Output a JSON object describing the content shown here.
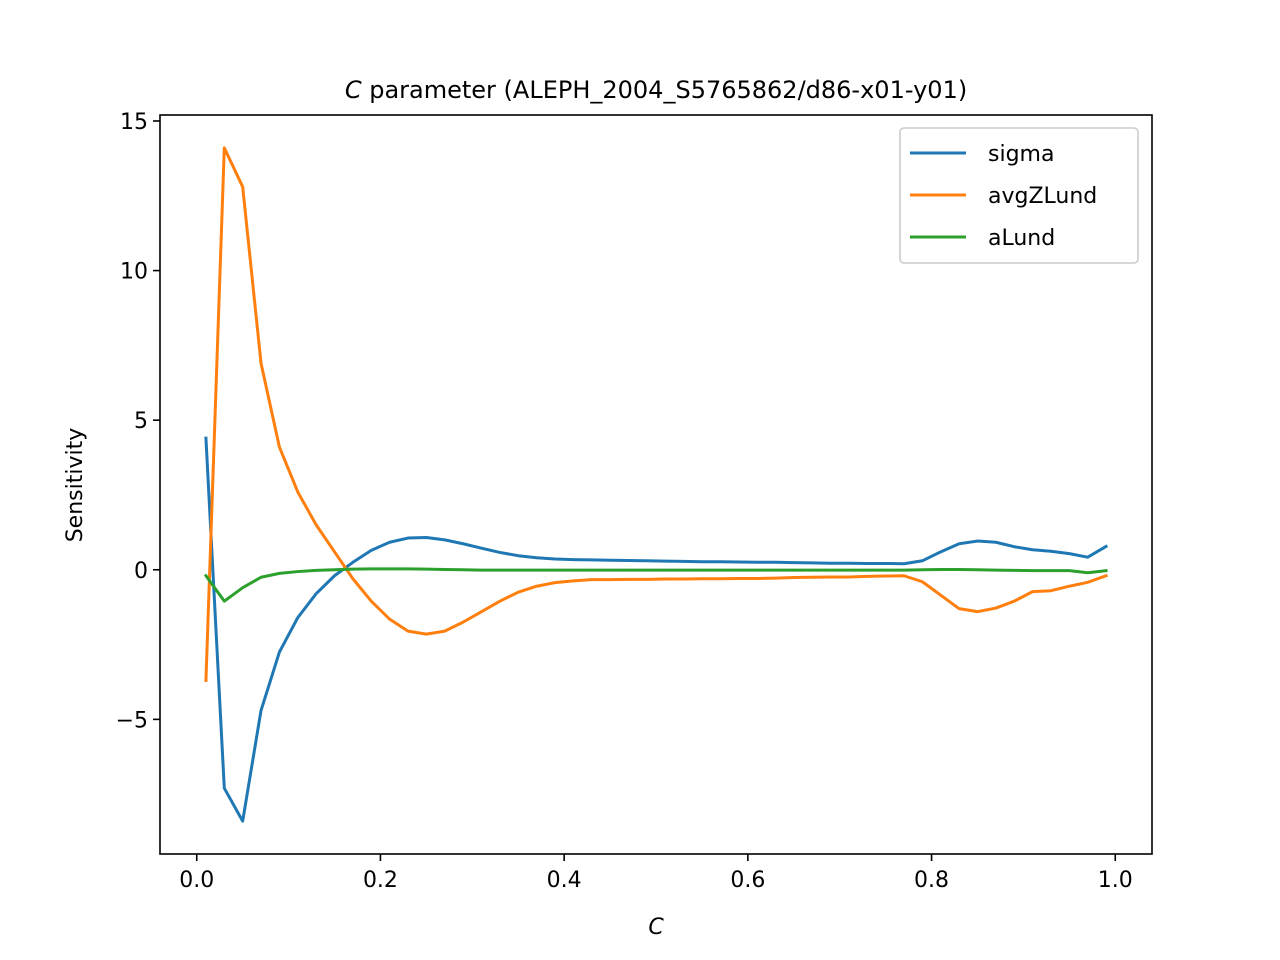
{
  "chart_data": {
    "type": "line",
    "title_var": "C",
    "title_rest": " parameter (ALEPH_2004_S5765862/d86-x01-y01)",
    "xlabel": "C",
    "ylabel": "Sensitivity",
    "xlim": [
      -0.04,
      1.04
    ],
    "ylim": [
      -9.5,
      15.2
    ],
    "xticks": [
      {
        "value": 0.0,
        "label": "0.0"
      },
      {
        "value": 0.2,
        "label": "0.2"
      },
      {
        "value": 0.4,
        "label": "0.4"
      },
      {
        "value": 0.6,
        "label": "0.6"
      },
      {
        "value": 0.8,
        "label": "0.8"
      },
      {
        "value": 1.0,
        "label": "1.0"
      }
    ],
    "yticks": [
      {
        "value": 15,
        "label": "15"
      },
      {
        "value": 10,
        "label": "10"
      },
      {
        "value": 5,
        "label": "5"
      },
      {
        "value": 0,
        "label": "0"
      },
      {
        "value": -5,
        "label": "−5"
      }
    ],
    "grid": false,
    "legend_position": "top-right",
    "x": [
      0.01,
      0.03,
      0.05,
      0.07,
      0.09,
      0.11,
      0.13,
      0.15,
      0.17,
      0.19,
      0.21,
      0.23,
      0.25,
      0.27,
      0.29,
      0.31,
      0.33,
      0.35,
      0.37,
      0.39,
      0.41,
      0.43,
      0.45,
      0.47,
      0.49,
      0.51,
      0.53,
      0.55,
      0.57,
      0.59,
      0.61,
      0.63,
      0.65,
      0.67,
      0.69,
      0.71,
      0.73,
      0.75,
      0.77,
      0.79,
      0.81,
      0.83,
      0.85,
      0.87,
      0.89,
      0.91,
      0.93,
      0.95,
      0.97,
      0.99
    ],
    "series": [
      {
        "name": "sigma",
        "color": "#1f77b4",
        "values": [
          4.4,
          -7.3,
          -8.4,
          -4.7,
          -2.75,
          -1.6,
          -0.8,
          -0.2,
          0.25,
          0.65,
          0.92,
          1.06,
          1.08,
          1.0,
          0.87,
          0.72,
          0.58,
          0.47,
          0.4,
          0.36,
          0.34,
          0.33,
          0.32,
          0.31,
          0.3,
          0.29,
          0.28,
          0.27,
          0.27,
          0.26,
          0.25,
          0.25,
          0.24,
          0.23,
          0.22,
          0.22,
          0.21,
          0.21,
          0.2,
          0.3,
          0.6,
          0.87,
          0.96,
          0.92,
          0.77,
          0.67,
          0.62,
          0.54,
          0.42,
          0.78
        ]
      },
      {
        "name": "avgZLund",
        "color": "#ff7f0e",
        "values": [
          -3.7,
          14.1,
          12.8,
          6.9,
          4.1,
          2.6,
          1.5,
          0.6,
          -0.3,
          -1.05,
          -1.65,
          -2.05,
          -2.15,
          -2.05,
          -1.75,
          -1.4,
          -1.05,
          -0.75,
          -0.55,
          -0.43,
          -0.37,
          -0.33,
          -0.33,
          -0.32,
          -0.32,
          -0.31,
          -0.31,
          -0.3,
          -0.3,
          -0.29,
          -0.29,
          -0.28,
          -0.26,
          -0.25,
          -0.24,
          -0.24,
          -0.22,
          -0.21,
          -0.2,
          -0.4,
          -0.85,
          -1.3,
          -1.4,
          -1.28,
          -1.05,
          -0.73,
          -0.7,
          -0.55,
          -0.42,
          -0.2
        ]
      },
      {
        "name": "aLund",
        "color": "#2ca02c",
        "values": [
          -0.2,
          -1.05,
          -0.6,
          -0.25,
          -0.12,
          -0.06,
          -0.02,
          0.0,
          0.02,
          0.03,
          0.03,
          0.03,
          0.02,
          0.01,
          0.0,
          -0.01,
          -0.01,
          -0.01,
          -0.01,
          -0.01,
          -0.01,
          -0.01,
          -0.01,
          -0.01,
          -0.01,
          -0.01,
          -0.01,
          -0.01,
          -0.01,
          -0.01,
          -0.01,
          -0.01,
          -0.01,
          -0.01,
          -0.01,
          -0.01,
          -0.01,
          -0.01,
          -0.01,
          0.0,
          0.01,
          0.01,
          0.0,
          -0.01,
          -0.02,
          -0.03,
          -0.03,
          -0.03,
          -0.1,
          -0.03
        ]
      }
    ]
  }
}
